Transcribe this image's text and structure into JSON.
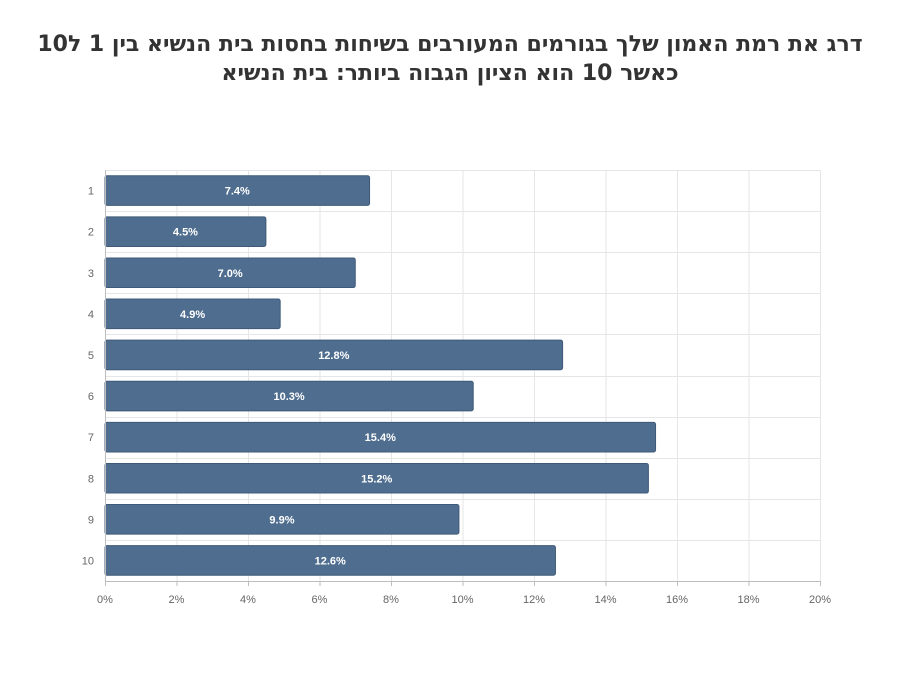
{
  "chart_data": {
    "type": "bar",
    "orientation": "horizontal",
    "title_lines": [
      "דרג את רמת האמון שלך בגורמים המעורבים בשיחות בחסות בית הנשיא בין 1 ל10",
      "כאשר 10 הוא הציון הגבוה ביותר: בית הנשיא"
    ],
    "categories": [
      "1",
      "2",
      "3",
      "4",
      "5",
      "6",
      "7",
      "8",
      "9",
      "10"
    ],
    "values": [
      7.4,
      4.5,
      7.0,
      4.9,
      12.8,
      10.3,
      15.4,
      15.2,
      9.9,
      12.6
    ],
    "value_labels": [
      "7.4%",
      "4.5%",
      "7.0%",
      "4.9%",
      "12.8%",
      "10.3%",
      "15.4%",
      "15.2%",
      "9.9%",
      "12.6%"
    ],
    "xlim": [
      0,
      20
    ],
    "x_ticks": [
      0,
      2,
      4,
      6,
      8,
      10,
      12,
      14,
      16,
      18,
      20
    ],
    "x_tick_labels": [
      "0%",
      "2%",
      "4%",
      "6%",
      "8%",
      "10%",
      "12%",
      "14%",
      "16%",
      "18%",
      "20%"
    ],
    "grid": true,
    "legend": "none",
    "colors": {
      "bar": "#4f6d8f",
      "bar_edge": "#3f5a78",
      "grid": "#e6e6e6",
      "axis": "#bdbdbd",
      "title": "#333333"
    }
  }
}
